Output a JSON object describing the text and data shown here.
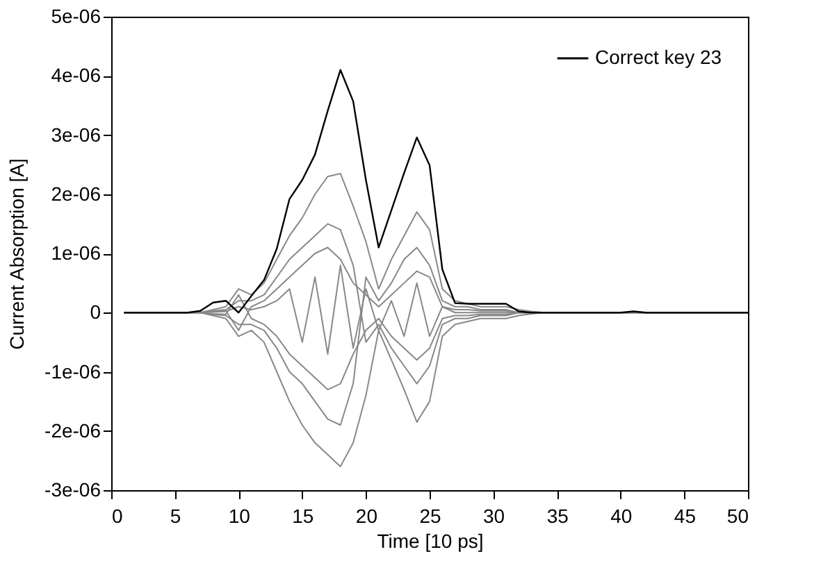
{
  "chart_data": {
    "type": "line",
    "xlabel": "Time [10 ps]",
    "ylabel": "Current Absorption [A]",
    "x": [
      1,
      2,
      3,
      4,
      5,
      6,
      7,
      8,
      9,
      10,
      11,
      12,
      13,
      14,
      15,
      16,
      17,
      18,
      19,
      20,
      21,
      22,
      23,
      24,
      25,
      26,
      27,
      28,
      29,
      30,
      31,
      32,
      33,
      34,
      35,
      36,
      37,
      38,
      39,
      40,
      41,
      42,
      43,
      44,
      45,
      46,
      47,
      48,
      49,
      50
    ],
    "xlim": [
      0,
      50
    ],
    "xticks": [
      0,
      5,
      10,
      15,
      20,
      25,
      30,
      35,
      40,
      45,
      50
    ],
    "ylim": [
      -3e-06,
      5e-06
    ],
    "yticks": [
      {
        "value": -3e-06,
        "label": "-3e-06"
      },
      {
        "value": -2e-06,
        "label": "-2e-06"
      },
      {
        "value": -1e-06,
        "label": "-1e-06"
      },
      {
        "value": 0,
        "label": "0"
      },
      {
        "value": 1e-06,
        "label": "1e-06"
      },
      {
        "value": 2e-06,
        "label": "2e-06"
      },
      {
        "value": 3e-06,
        "label": "3e-06"
      },
      {
        "value": 4e-06,
        "label": "4e-06"
      },
      {
        "value": 5e-06,
        "label": "5e-06"
      }
    ],
    "grid": false,
    "legend": "top right",
    "line_style": "solid",
    "marker": "none",
    "series": [
      {
        "color": "#888888",
        "values": [
          0,
          0,
          0,
          0,
          0,
          0,
          0,
          5e-08,
          1e-07,
          4e-07,
          3e-07,
          5e-07,
          9e-07,
          1.3e-06,
          1.6e-06,
          2e-06,
          2.3e-06,
          2.35e-06,
          1.8e-06,
          1.2e-06,
          4e-07,
          9e-07,
          1.3e-06,
          1.7e-06,
          1.4e-06,
          4e-07,
          2e-07,
          1.5e-07,
          1e-07,
          1e-07,
          1e-07,
          5e-08,
          2e-08,
          0,
          0,
          0,
          0,
          0,
          0,
          0,
          0,
          0,
          0,
          0,
          0,
          0,
          0,
          0,
          0,
          0
        ]
      },
      {
        "color": "#888888",
        "values": [
          0,
          0,
          0,
          0,
          0,
          0,
          0,
          -5e-08,
          -1e-07,
          -4e-07,
          -3e-07,
          -5e-07,
          -1e-06,
          -1.5e-06,
          -1.9e-06,
          -2.2e-06,
          -2.4e-06,
          -2.6e-06,
          -2.2e-06,
          -1.4e-06,
          -3e-07,
          -8e-07,
          -1.3e-06,
          -1.85e-06,
          -1.5e-06,
          -4e-07,
          -2e-07,
          -1.5e-07,
          -1e-07,
          -1e-07,
          -1e-07,
          -5e-08,
          -2e-08,
          0,
          0,
          0,
          0,
          0,
          0,
          0,
          0,
          0,
          0,
          0,
          0,
          0,
          0,
          0,
          0,
          0
        ]
      },
      {
        "color": "#888888",
        "values": [
          0,
          0,
          0,
          0,
          0,
          0,
          0,
          3e-08,
          5e-08,
          2e-07,
          2e-07,
          3e-07,
          6e-07,
          9e-07,
          1.1e-06,
          1.3e-06,
          1.5e-06,
          1.4e-06,
          8e-07,
          -5e-07,
          -2e-07,
          -6e-07,
          -9e-07,
          -1.2e-06,
          -9e-07,
          -2e-07,
          -1e-07,
          -1e-07,
          -5e-08,
          -5e-08,
          -5e-08,
          0,
          0,
          0,
          0,
          0,
          0,
          0,
          0,
          0,
          0,
          0,
          0,
          0,
          0,
          0,
          0,
          0,
          0,
          0
        ]
      },
      {
        "color": "#888888",
        "values": [
          0,
          0,
          0,
          0,
          0,
          0,
          0,
          -3e-08,
          -5e-08,
          -2e-07,
          -2e-07,
          -3e-07,
          -6e-07,
          -1e-06,
          -1.2e-06,
          -1.5e-06,
          -1.8e-06,
          -1.9e-06,
          -1.2e-06,
          6e-07,
          2e-07,
          5e-07,
          9e-07,
          1.1e-06,
          8e-07,
          2e-07,
          1e-07,
          1e-07,
          5e-08,
          5e-08,
          5e-08,
          0,
          0,
          0,
          0,
          0,
          0,
          0,
          0,
          0,
          0,
          0,
          0,
          0,
          0,
          0,
          0,
          0,
          0,
          0
        ]
      },
      {
        "color": "#888888",
        "values": [
          0,
          0,
          0,
          0,
          0,
          0,
          0,
          2e-08,
          3e-08,
          -3e-07,
          1e-07,
          2e-07,
          4e-07,
          6e-07,
          8e-07,
          1e-06,
          1.1e-06,
          9e-07,
          5e-07,
          3e-07,
          1e-07,
          3e-07,
          5e-07,
          7e-07,
          6e-07,
          1e-07,
          5e-08,
          5e-08,
          3e-08,
          3e-08,
          3e-08,
          0,
          0,
          0,
          0,
          0,
          0,
          0,
          0,
          0,
          0,
          0,
          0,
          0,
          0,
          0,
          0,
          0,
          0,
          0
        ]
      },
      {
        "color": "#888888",
        "values": [
          0,
          0,
          0,
          0,
          0,
          0,
          0,
          -2e-08,
          -3e-08,
          3e-07,
          -1e-07,
          -2e-07,
          -4e-07,
          -7e-07,
          -9e-07,
          -1.1e-06,
          -1.3e-06,
          -1.2e-06,
          -7e-07,
          -3e-07,
          -1e-07,
          -4e-07,
          -6e-07,
          -8e-07,
          -6e-07,
          -1e-07,
          -5e-08,
          -5e-08,
          -3e-08,
          -3e-08,
          -3e-08,
          0,
          0,
          0,
          0,
          0,
          0,
          0,
          0,
          0,
          0,
          0,
          0,
          0,
          0,
          0,
          0,
          0,
          0,
          0
        ]
      },
      {
        "color": "#888888",
        "values": [
          0,
          0,
          0,
          0,
          0,
          0,
          0,
          1e-08,
          2e-08,
          1e-07,
          5e-08,
          1e-07,
          2e-07,
          4e-07,
          -5e-07,
          6e-07,
          -7e-07,
          8e-07,
          -6e-07,
          4e-07,
          -3e-07,
          2e-07,
          -4e-07,
          5e-07,
          -4e-07,
          1e-07,
          0,
          0,
          0,
          0,
          0,
          0,
          0,
          0,
          0,
          0,
          0,
          0,
          0,
          0,
          0,
          0,
          0,
          0,
          0,
          0,
          0,
          0,
          0,
          0
        ]
      },
      {
        "name": "Correct key 23",
        "color": "#000000",
        "values": [
          0,
          0,
          0,
          0,
          0,
          0,
          3e-08,
          1.7e-07,
          2e-07,
          0,
          2.8e-07,
          5.5e-07,
          1.08e-06,
          1.92e-06,
          2.24e-06,
          2.67e-06,
          3.41e-06,
          4.1e-06,
          3.57e-06,
          2.24e-06,
          1.1e-06,
          1.73e-06,
          2.36e-06,
          2.96e-06,
          2.49e-06,
          7.3e-07,
          1.6e-07,
          1.5e-07,
          1.5e-07,
          1.5e-07,
          1.5e-07,
          2e-08,
          0,
          0,
          0,
          0,
          0,
          0,
          0,
          0,
          2e-08,
          0,
          0,
          0,
          0,
          0,
          0,
          0,
          0,
          0
        ]
      }
    ]
  }
}
